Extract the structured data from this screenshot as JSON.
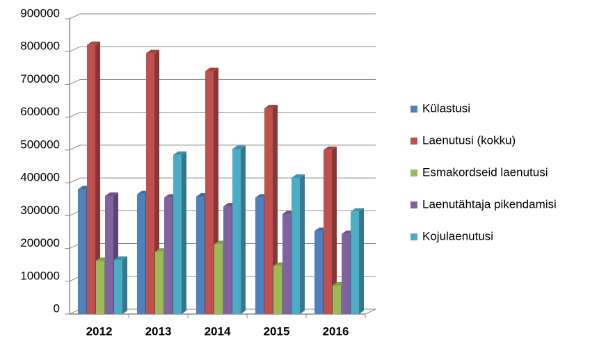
{
  "chart_data": {
    "type": "bar",
    "categories": [
      "2012",
      "2013",
      "2014",
      "2015",
      "2016"
    ],
    "series": [
      {
        "name": "Külastusi",
        "color": "#4f81bd",
        "values": [
          380000,
          365000,
          358000,
          355000,
          253000
        ]
      },
      {
        "name": "Laenutusi (kokku)",
        "color": "#c0504d",
        "values": [
          820000,
          795000,
          740000,
          627000,
          500000
        ]
      },
      {
        "name": "Esmakordseid laenutusi",
        "color": "#9bbb59",
        "values": [
          162000,
          190000,
          213000,
          147000,
          87000
        ]
      },
      {
        "name": "Laenutähtaja pikendamisi",
        "color": "#8064a2",
        "values": [
          360000,
          355000,
          328000,
          305000,
          244000
        ]
      },
      {
        "name": "Kojulaenutusi",
        "color": "#4bacc6",
        "values": [
          165000,
          485000,
          503000,
          415000,
          312000
        ]
      }
    ],
    "ylim": [
      0,
      900000
    ],
    "yticks": [
      0,
      100000,
      200000,
      300000,
      400000,
      500000,
      600000,
      700000,
      800000,
      900000
    ],
    "grid": true,
    "legend": "right"
  }
}
